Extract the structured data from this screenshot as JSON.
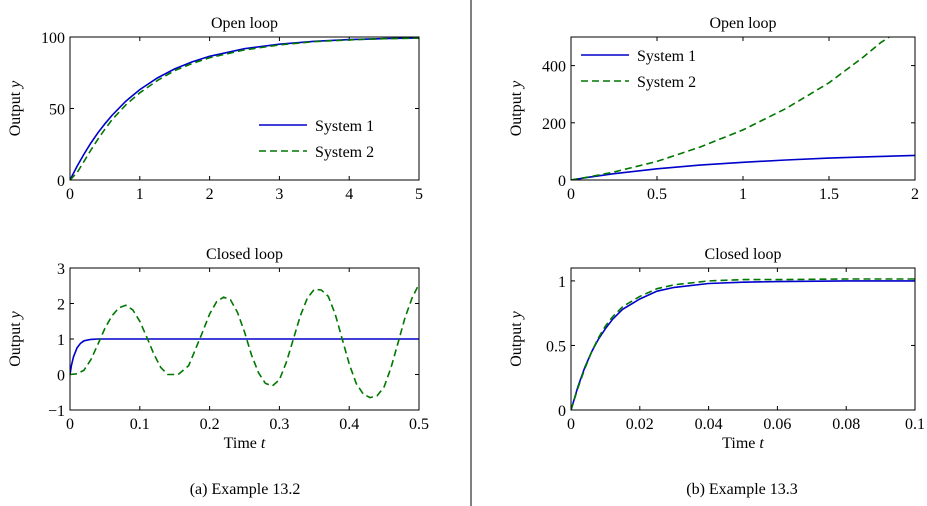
{
  "captions": [
    "(a) Example 13.2",
    "(b) Example 13.3"
  ],
  "chart_data": [
    {
      "id": "a_open",
      "type": "line",
      "title": "Open loop",
      "xlabel": "",
      "ylabel": "Output",
      "ylabel_var": "y",
      "xlim": [
        0,
        5
      ],
      "ylim": [
        0,
        100
      ],
      "xticks": [
        0,
        1,
        2,
        3,
        4,
        5
      ],
      "xtick_labels": [
        "0",
        "1",
        "2",
        "3",
        "4",
        "5"
      ],
      "yticks": [
        0,
        50,
        100
      ],
      "ytick_labels": [
        "0",
        "50",
        "100"
      ],
      "legend": "bottom-right",
      "series": [
        {
          "name": "System 1",
          "color": "#0000cc",
          "dash": false,
          "x": [
            0,
            0.1,
            0.2,
            0.3,
            0.4,
            0.5,
            0.6,
            0.8,
            1,
            1.25,
            1.5,
            1.75,
            2,
            2.5,
            3,
            3.5,
            4,
            4.5,
            5
          ],
          "y": [
            0,
            9.5,
            18.1,
            25.9,
            33,
            39.3,
            45.1,
            55.1,
            63.2,
            71.3,
            77.7,
            82.6,
            86.5,
            91.8,
            95,
            97,
            98.2,
            98.9,
            99.3
          ]
        },
        {
          "name": "System 2",
          "color": "#007700",
          "dash": true,
          "x": [
            0,
            0.1,
            0.2,
            0.3,
            0.4,
            0.5,
            0.6,
            0.8,
            1,
            1.25,
            1.5,
            1.75,
            2,
            2.5,
            3,
            3.5,
            4,
            4.5,
            5
          ],
          "y": [
            0,
            5,
            13,
            21,
            28.5,
            35.5,
            42,
            52.5,
            61,
            69.5,
            76.5,
            81.5,
            85.5,
            91,
            94.5,
            96.8,
            98,
            98.8,
            99.2
          ]
        }
      ]
    },
    {
      "id": "a_closed",
      "type": "line",
      "title": "Closed loop",
      "xlabel": "Time",
      "xlabel_var": "t",
      "ylabel": "Output",
      "ylabel_var": "y",
      "xlim": [
        0,
        0.5
      ],
      "ylim": [
        -1,
        3
      ],
      "xticks": [
        0,
        0.1,
        0.2,
        0.3,
        0.4,
        0.5
      ],
      "xtick_labels": [
        "0",
        "0.1",
        "0.2",
        "0.3",
        "0.4",
        "0.5"
      ],
      "yticks": [
        -1,
        0,
        1,
        2,
        3
      ],
      "ytick_labels": [
        "−1",
        "0",
        "1",
        "2",
        "3"
      ],
      "series": [
        {
          "name": "System 1",
          "color": "#0000cc",
          "dash": false,
          "x": [
            0,
            0.002,
            0.005,
            0.01,
            0.015,
            0.02,
            0.03,
            0.04,
            0.06,
            0.1,
            0.2,
            0.3,
            0.4,
            0.5
          ],
          "y": [
            0,
            0.25,
            0.5,
            0.75,
            0.88,
            0.95,
            0.99,
            1,
            1,
            1,
            1,
            1,
            1,
            1
          ]
        },
        {
          "name": "System 2",
          "color": "#007700",
          "dash": true,
          "x": [
            0,
            0.01,
            0.02,
            0.03,
            0.04,
            0.05,
            0.06,
            0.07,
            0.08,
            0.09,
            0.1,
            0.11,
            0.12,
            0.13,
            0.14,
            0.155,
            0.17,
            0.18,
            0.19,
            0.2,
            0.21,
            0.22,
            0.23,
            0.24,
            0.25,
            0.26,
            0.27,
            0.28,
            0.29,
            0.3,
            0.31,
            0.32,
            0.33,
            0.34,
            0.35,
            0.36,
            0.37,
            0.38,
            0.39,
            0.4,
            0.41,
            0.42,
            0.43,
            0.44,
            0.45,
            0.46,
            0.47,
            0.48,
            0.49,
            0.5
          ],
          "y": [
            0,
            0.02,
            0.12,
            0.42,
            0.85,
            1.3,
            1.65,
            1.88,
            1.95,
            1.82,
            1.5,
            1.05,
            0.58,
            0.2,
            0,
            0,
            0.25,
            0.72,
            1.2,
            1.7,
            2.05,
            2.18,
            2.1,
            1.75,
            1.2,
            0.55,
            0.05,
            -0.25,
            -0.32,
            -0.15,
            0.35,
            1,
            1.65,
            2.15,
            2.4,
            2.38,
            2.2,
            1.7,
            1,
            0.3,
            -0.25,
            -0.55,
            -0.65,
            -0.6,
            -0.35,
            0.2,
            0.9,
            1.6,
            2.15,
            2.55
          ]
        }
      ]
    },
    {
      "id": "b_open",
      "type": "line",
      "title": "Open loop",
      "xlabel": "",
      "ylabel": "Output",
      "ylabel_var": "y",
      "xlim": [
        0,
        2
      ],
      "ylim": [
        0,
        500
      ],
      "xticks": [
        0,
        0.5,
        1,
        1.5,
        2
      ],
      "xtick_labels": [
        "0",
        "0.5",
        "1",
        "1.5",
        "2"
      ],
      "yticks": [
        0,
        200,
        400
      ],
      "ytick_labels": [
        "0",
        "200",
        "400"
      ],
      "legend": "top-left",
      "series": [
        {
          "name": "System 1",
          "color": "#0000cc",
          "dash": false,
          "x": [
            0,
            0.1,
            0.25,
            0.5,
            0.75,
            1,
            1.25,
            1.5,
            1.75,
            2
          ],
          "y": [
            0,
            9.5,
            22,
            39,
            52,
            62,
            70,
            76.5,
            81.5,
            86
          ]
        },
        {
          "name": "System 2",
          "color": "#007700",
          "dash": true,
          "x": [
            0,
            0.1,
            0.25,
            0.5,
            0.75,
            1,
            1.25,
            1.5,
            1.6,
            1.7,
            1.8,
            1.85
          ],
          "y": [
            0,
            10,
            28,
            65,
            115,
            175,
            250,
            340,
            385,
            430,
            480,
            500
          ]
        }
      ]
    },
    {
      "id": "b_closed",
      "type": "line",
      "title": "Closed loop",
      "xlabel": "Time",
      "xlabel_var": "t",
      "ylabel": "Output",
      "ylabel_var": "y",
      "xlim": [
        0,
        0.1
      ],
      "ylim": [
        0,
        1.1
      ],
      "xticks": [
        0,
        0.02,
        0.04,
        0.06,
        0.08,
        0.1
      ],
      "xtick_labels": [
        "0",
        "0.02",
        "0.04",
        "0.06",
        "0.08",
        "0.1"
      ],
      "yticks": [
        0,
        0.5,
        1
      ],
      "ytick_labels": [
        "0",
        "0.5",
        "1"
      ],
      "series": [
        {
          "name": "System 1",
          "color": "#0000cc",
          "dash": false,
          "x": [
            0,
            0.002,
            0.004,
            0.006,
            0.008,
            0.01,
            0.012,
            0.015,
            0.02,
            0.025,
            0.03,
            0.04,
            0.05,
            0.06,
            0.08,
            0.1
          ],
          "y": [
            0,
            0.18,
            0.33,
            0.45,
            0.55,
            0.63,
            0.7,
            0.78,
            0.86,
            0.92,
            0.95,
            0.98,
            0.99,
            0.995,
            1,
            1
          ]
        },
        {
          "name": "System 2",
          "color": "#007700",
          "dash": true,
          "x": [
            0,
            0.002,
            0.004,
            0.006,
            0.008,
            0.01,
            0.012,
            0.015,
            0.02,
            0.025,
            0.03,
            0.04,
            0.05,
            0.06,
            0.08,
            0.1
          ],
          "y": [
            0,
            0.17,
            0.32,
            0.45,
            0.56,
            0.65,
            0.72,
            0.8,
            0.88,
            0.94,
            0.97,
            1,
            1.01,
            1.01,
            1.015,
            1.015
          ]
        }
      ]
    }
  ]
}
